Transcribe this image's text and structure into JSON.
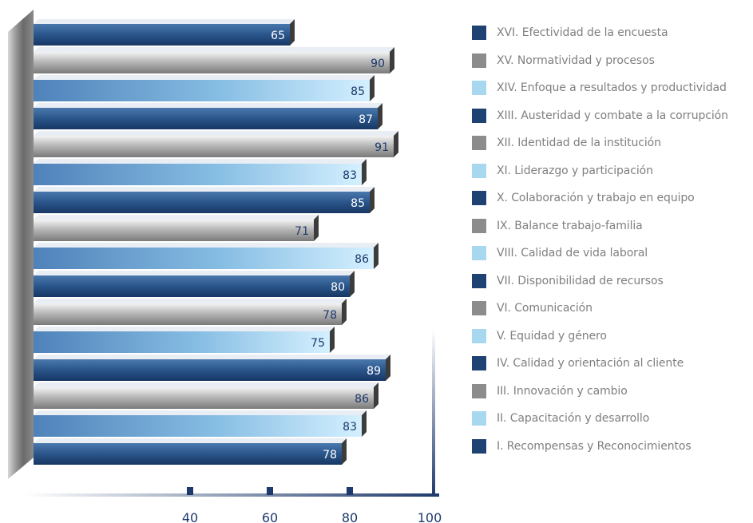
{
  "colors": {
    "dark": "#1e4272",
    "gray": "#8c8c8c",
    "light": "#a8d8f0"
  },
  "chart_data": {
    "type": "bar",
    "orientation": "horizontal",
    "categories": [
      "XVI. Efectividad de la encuesta",
      "XV. Normatividad y procesos",
      "XIV. Enfoque a resultados y productividad",
      "XIII. Austeridad y combate a la corrupción",
      "XII. Identidad de la institución",
      "XI. Liderazgo y participación",
      "X. Colaboración y trabajo en equipo",
      "IX. Balance trabajo-familia",
      "VIII. Calidad de vida laboral",
      "VII. Disponibilidad de recursos",
      "VI. Comunicación",
      "V. Equidad y género",
      "IV. Calidad y orientación al cliente",
      "III. Innovación y cambio",
      "II. Capacitación y desarrollo",
      "I. Recompensas y Reconocimientos"
    ],
    "values": [
      65,
      90,
      85,
      87,
      91,
      83,
      85,
      71,
      86,
      80,
      78,
      75,
      89,
      86,
      83,
      78
    ],
    "color_keys": [
      "dark",
      "gray",
      "light",
      "dark",
      "gray",
      "light",
      "dark",
      "gray",
      "light",
      "dark",
      "gray",
      "light",
      "dark",
      "gray",
      "light",
      "dark"
    ],
    "xticks": [
      40,
      60,
      80,
      100
    ],
    "xlim": [
      0,
      100
    ],
    "legend_position": "right"
  }
}
